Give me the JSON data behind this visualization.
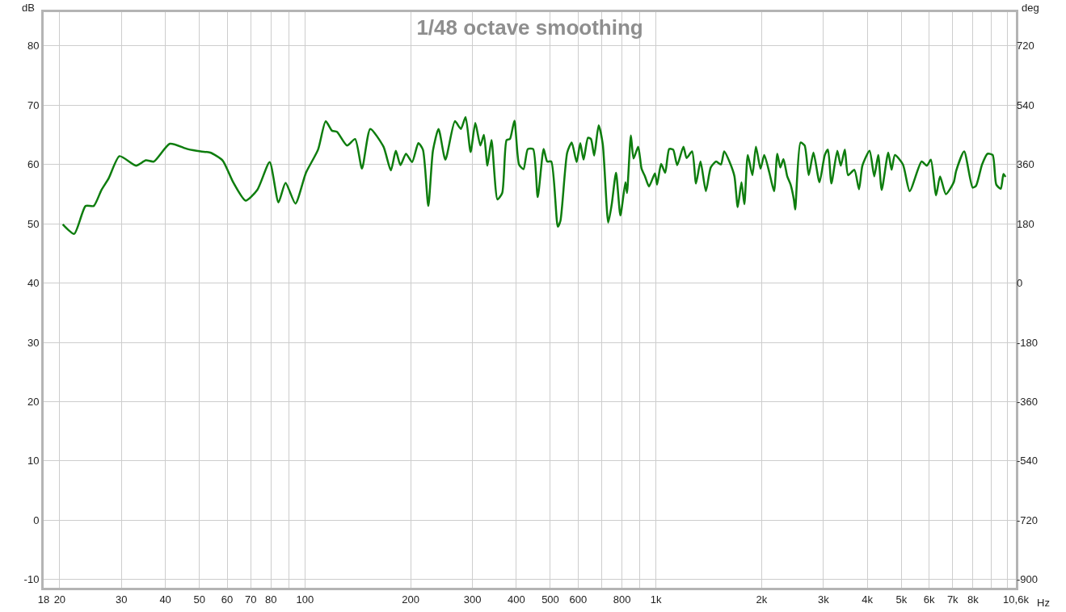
{
  "chart_data": {
    "type": "line",
    "title": "1/48 octave smoothing",
    "xlabel": "Hz",
    "ylabel": "dB",
    "y2label": "deg",
    "log": "x",
    "grid": true,
    "line_style": "solid",
    "xlim": [
      18,
      10600
    ],
    "ylim": [
      -11.4,
      85.7
    ],
    "y2lim": [
      -925.2,
      822.6
    ],
    "xticks": [
      18,
      20,
      30,
      40,
      50,
      60,
      70,
      80,
      {
        "value": 90,
        "label": null
      },
      100,
      200,
      300,
      400,
      500,
      600,
      {
        "value": 700,
        "label": null
      },
      800,
      {
        "value": 900,
        "label": null
      },
      {
        "value": 1000,
        "label": "1k"
      },
      {
        "value": 2000,
        "label": "2k"
      },
      {
        "value": 3000,
        "label": "3k"
      },
      {
        "value": 4000,
        "label": "4k"
      },
      {
        "value": 5000,
        "label": "5k"
      },
      {
        "value": 6000,
        "label": "6k"
      },
      {
        "value": 7000,
        "label": "7k"
      },
      {
        "value": 8000,
        "label": "8k"
      },
      {
        "value": 9000,
        "label": null
      },
      {
        "value": 10000,
        "label": null
      },
      {
        "value": 10600,
        "label": "10,6k"
      }
    ],
    "yticks": [
      -10,
      0,
      10,
      20,
      30,
      40,
      50,
      60,
      70,
      80
    ],
    "y2ticks": [
      -900,
      -720,
      -540,
      -360,
      -180,
      0,
      180,
      360,
      540,
      720
    ],
    "x": [
      20.4,
      22.0,
      23.7,
      25.0,
      26.3,
      27.6,
      29.6,
      33.0,
      35.2,
      37.1,
      41.2,
      46.3,
      50.4,
      53.7,
      58.2,
      62.4,
      67.7,
      73.1,
      79.3,
      84.0,
      88.0,
      93.9,
      100.6,
      108.9,
      114.5,
      119.3,
      123.3,
      131.7,
      138.9,
      145.3,
      153.4,
      167.3,
      175.6,
      181.4,
      187.0,
      193.9,
      201.9,
      210.3,
      216.7,
      224.5,
      231.4,
      240.1,
      251.1,
      267.3,
      278.0,
      286.7,
      296.3,
      305.6,
      315.9,
      323.3,
      330.9,
      339.8,
      353.4,
      364.6,
      375.2,
      383.6,
      395,
      407.1,
      419.2,
      431.3,
      446.6,
      460.2,
      478.4,
      489.7,
      502.9,
      525,
      534.2,
      558.4,
      575.3,
      594,
      608.4,
      621.7,
      640.0,
      652.5,
      666.5,
      686.3,
      705.2,
      730.8,
      747.5,
      769.3,
      791.6,
      818.2,
      826.6,
      848.0,
      863.0,
      889.6,
      909.4,
      930.1,
      955.1,
      992.9,
      1007,
      1034,
      1062,
      1090,
      1119,
      1149,
      1197,
      1222,
      1267,
      1300,
      1339,
      1387,
      1432,
      1483,
      1531,
      1564,
      1626,
      1673,
      1709,
      1752,
      1785,
      1826,
      1882,
      1926,
      1985,
      2034,
      2104,
      2169,
      2216,
      2260,
      2307,
      2365,
      2418,
      2470,
      2492,
      2580,
      2651,
      2723,
      2809,
      2922,
      3026,
      3090,
      3160,
      3285,
      3361,
      3451,
      3526,
      3674,
      3787,
      3873,
      4059,
      4186,
      4296,
      4395,
      4588,
      4690,
      4793,
      5053,
      5282,
      5710,
      5912,
      6068,
      6280,
      6445,
      6696,
      7050,
      7161,
      7550,
      7980,
      8160,
      8490,
      8800,
      9100,
      9320,
      9600,
      9770,
      9900
    ],
    "series": [
      {
        "color": "#0e7d0e",
        "values": [
          49.9,
          48.3,
          53.0,
          53.0,
          55.7,
          57.7,
          61.4,
          59.8,
          60.7,
          60.5,
          63.5,
          62.6,
          62.2,
          62.0,
          60.7,
          57.0,
          53.9,
          55.7,
          60.4,
          53.6,
          56.9,
          53.4,
          58.6,
          62.5,
          67.3,
          65.7,
          65.5,
          63.2,
          64.3,
          59.3,
          66.0,
          63.0,
          59.0,
          62.3,
          59.9,
          61.8,
          60.4,
          63.6,
          62.5,
          53.0,
          62.3,
          66.0,
          60.8,
          67.3,
          66.0,
          68.0,
          62.1,
          67.0,
          63.2,
          65.0,
          59.8,
          64.1,
          54.1,
          55.2,
          64.1,
          64.3,
          67.4,
          60.0,
          59.2,
          62.6,
          62.6,
          54.5,
          62.6,
          60.5,
          60.5,
          49.5,
          50.5,
          62.0,
          63.7,
          60.4,
          63.6,
          60.8,
          64.5,
          64.3,
          61.5,
          66.6,
          63.4,
          50.2,
          53.2,
          58.6,
          51.4,
          57.0,
          55.2,
          64.9,
          61.0,
          63.0,
          59.3,
          58.0,
          56.3,
          58.5,
          56.6,
          60.1,
          58.6,
          62.6,
          62.5,
          59.9,
          63.0,
          61.1,
          62.2,
          56.8,
          60.5,
          55.5,
          59.5,
          60.5,
          60.0,
          62.2,
          60.2,
          58.0,
          52.8,
          57.0,
          53.3,
          61.6,
          58.2,
          63.0,
          59.3,
          61.6,
          58.6,
          55.5,
          61.8,
          59.5,
          60.9,
          58.0,
          56.6,
          54.1,
          52.4,
          63.7,
          63.2,
          58.2,
          62.0,
          57.0,
          61.6,
          62.5,
          56.8,
          62.3,
          59.8,
          62.5,
          58.2,
          59.1,
          55.8,
          59.8,
          62.3,
          58.0,
          61.6,
          55.7,
          62.0,
          59.1,
          61.6,
          60.0,
          55.5,
          60.5,
          59.8,
          60.8,
          54.8,
          58.0,
          55.0,
          57.0,
          58.9,
          62.2,
          56.1,
          56.4,
          60.0,
          61.8,
          61.6,
          56.6,
          55.9,
          58.4,
          57.9
        ]
      }
    ]
  }
}
